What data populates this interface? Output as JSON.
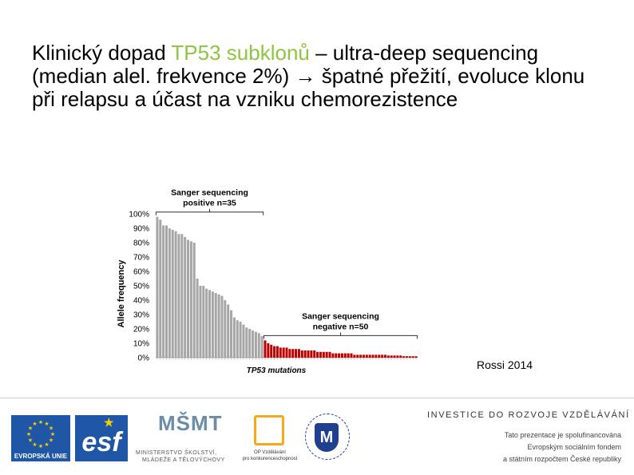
{
  "slide": {
    "title_part1": "Klinický dopad ",
    "title_accent": "TP53 subklonů",
    "title_part2": " – ultra-deep sequencing (median alel. frekvence 2%) → špatné přežití, evoluce klonu při relapsu a účast na vzniku chemorezistence",
    "accent_color": "#8dc63f",
    "source": "Rossi 2014"
  },
  "chart_data": {
    "type": "bar",
    "title": "",
    "xlabel": "TP53 mutations",
    "ylabel": "Allele frequency",
    "ylim": [
      0,
      100
    ],
    "yticks": [
      "0%",
      "10%",
      "20%",
      "30%",
      "40%",
      "50%",
      "60%",
      "70%",
      "80%",
      "90%",
      "100%"
    ],
    "grid": false,
    "annotations": [
      {
        "line1": "Sanger sequencing",
        "line2": "positive n=35"
      },
      {
        "line1": "Sanger sequencing",
        "line2": "negative n=50"
      }
    ],
    "series": [
      {
        "color": "#a6a6a6",
        "values": [
          98,
          96,
          92,
          92,
          90,
          89,
          88,
          86,
          86,
          84,
          82,
          81,
          80,
          55,
          50,
          50,
          48,
          47,
          46,
          45,
          44,
          43,
          40,
          37,
          33,
          28,
          26,
          25,
          23,
          21,
          20,
          19,
          18,
          17,
          15
        ]
      },
      {
        "color": "#c00000",
        "values": [
          12,
          10,
          9,
          8,
          8,
          7,
          7,
          7,
          6,
          6,
          6,
          6,
          5,
          5,
          5,
          5,
          5,
          4,
          4,
          4,
          4,
          4,
          3,
          3,
          3,
          3,
          3,
          3,
          3,
          2,
          2,
          2,
          2,
          2,
          2,
          2,
          2,
          2,
          2,
          2,
          1.5,
          1.5,
          1.5,
          1.5,
          1.5,
          1,
          1,
          1,
          1,
          1
        ]
      }
    ]
  },
  "footer": {
    "eu_caption": "EVROPSKÁ UNIE",
    "esf_text": "esf",
    "msmt_mark": "MŠMT",
    "msmt_line1": "MINISTERSTVO ŠKOLSTVÍ,",
    "msmt_line2": "MLÁDEŽE A TĚLOVÝCHOVY",
    "op_line1": "OP Vzdělávání",
    "op_line2": "pro konkurenceschopnost",
    "muni_mark": "M",
    "invest_title": "INVESTICE DO ROZVOJE VZDĚLÁVÁNÍ",
    "invest_line1": "Tato prezentace je spolufinancována",
    "invest_line2": "Evropským sociálním fondem",
    "invest_line3": "a státním rozpočtem České republiky"
  }
}
